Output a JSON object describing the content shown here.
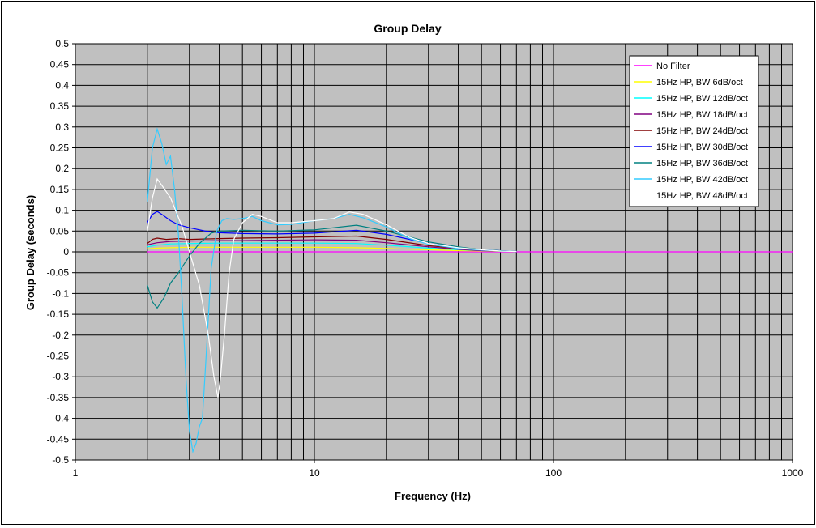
{
  "chart_data": {
    "type": "line",
    "title": "Group Delay",
    "xlabel": "Frequency (Hz)",
    "ylabel": "Group Delay (seconds)",
    "xscale": "log",
    "xlim": [
      1,
      1000
    ],
    "ylim": [
      -0.5,
      0.5
    ],
    "x_ticks": [
      "1",
      "10",
      "100",
      "1000"
    ],
    "y_ticks": [
      "0.5",
      "0.45",
      "0.4",
      "0.35",
      "0.3",
      "0.25",
      "0.2",
      "0.15",
      "0.1",
      "0.05",
      "0",
      "-0.05",
      "-0.1",
      "-0.15",
      "-0.2",
      "-0.25",
      "-0.3",
      "-0.35",
      "-0.4",
      "-0.45",
      "-0.5"
    ],
    "grid": "on",
    "plot_background": "#c0c0c0",
    "legend_position": "top-right",
    "series": [
      {
        "name": "No Filter",
        "color": "#ff00ff",
        "x": [
          2,
          3,
          5,
          10,
          20,
          40,
          100,
          1000
        ],
        "y": [
          0,
          0,
          0,
          0,
          0,
          0,
          0,
          0
        ]
      },
      {
        "name": "15Hz HP, BW 6dB/oct",
        "color": "#ffff00",
        "x": [
          2,
          2.2,
          2.5,
          3,
          4,
          5,
          7,
          10,
          15,
          20,
          30,
          40,
          50,
          70
        ],
        "y": [
          0.007,
          0.009,
          0.01,
          0.011,
          0.011,
          0.011,
          0.011,
          0.011,
          0.01,
          0.008,
          0.005,
          0.003,
          0.002,
          0.001
        ]
      },
      {
        "name": "15Hz HP, BW 12dB/oct",
        "color": "#00ffff",
        "x": [
          2,
          2.2,
          2.5,
          3,
          4,
          5,
          7,
          10,
          15,
          20,
          30,
          40,
          50,
          70
        ],
        "y": [
          0.012,
          0.016,
          0.019,
          0.02,
          0.021,
          0.021,
          0.021,
          0.021,
          0.02,
          0.016,
          0.009,
          0.005,
          0.003,
          0.001
        ]
      },
      {
        "name": "15Hz HP, BW 18dB/oct",
        "color": "#800080",
        "x": [
          2,
          2.2,
          2.5,
          3,
          4,
          5,
          7,
          10,
          15,
          20,
          30,
          40,
          50,
          70
        ],
        "y": [
          0.017,
          0.022,
          0.025,
          0.026,
          0.027,
          0.027,
          0.028,
          0.029,
          0.028,
          0.022,
          0.012,
          0.006,
          0.003,
          0.001
        ]
      },
      {
        "name": "15Hz HP, BW 24dB/oct",
        "color": "#800000",
        "x": [
          2,
          2.1,
          2.2,
          2.4,
          2.7,
          3,
          4,
          5,
          7,
          10,
          15,
          20,
          30,
          40,
          50,
          70
        ],
        "y": [
          0.02,
          0.03,
          0.033,
          0.03,
          0.032,
          0.03,
          0.032,
          0.033,
          0.034,
          0.036,
          0.038,
          0.03,
          0.015,
          0.008,
          0.004,
          0.001
        ]
      },
      {
        "name": "15Hz HP, BW 30dB/oct",
        "color": "#0000ff",
        "x": [
          2,
          2.1,
          2.2,
          2.3,
          2.5,
          2.7,
          3,
          3.5,
          4,
          5,
          7,
          10,
          15,
          20,
          30,
          40,
          50,
          70
        ],
        "y": [
          0.07,
          0.09,
          0.097,
          0.09,
          0.075,
          0.065,
          0.058,
          0.05,
          0.046,
          0.044,
          0.043,
          0.045,
          0.052,
          0.042,
          0.02,
          0.01,
          0.005,
          0.001
        ]
      },
      {
        "name": "15Hz HP, BW 36dB/oct",
        "color": "#008080",
        "x": [
          2,
          2.1,
          2.2,
          2.35,
          2.5,
          2.7,
          3,
          3.3,
          3.7,
          4,
          5,
          7,
          10,
          15,
          20,
          30,
          40,
          50,
          70
        ],
        "y": [
          -0.08,
          -0.12,
          -0.135,
          -0.11,
          -0.075,
          -0.05,
          -0.01,
          0.02,
          0.045,
          0.05,
          0.052,
          0.05,
          0.053,
          0.064,
          0.05,
          0.024,
          0.012,
          0.005,
          0.001
        ]
      },
      {
        "name": "15Hz HP, BW 42dB/oct",
        "color": "#33ccff",
        "x": [
          2,
          2.1,
          2.2,
          2.3,
          2.4,
          2.5,
          2.6,
          2.7,
          2.8,
          2.9,
          3,
          3.1,
          3.2,
          3.3,
          3.4,
          3.5,
          3.7,
          3.9,
          4.1,
          4.3,
          4.6,
          5,
          5.5,
          6,
          7,
          8,
          10,
          12,
          14,
          16,
          20,
          25,
          30,
          40,
          50,
          60,
          70
        ],
        "y": [
          0.12,
          0.25,
          0.295,
          0.26,
          0.21,
          0.23,
          0.15,
          0.04,
          -0.12,
          -0.3,
          -0.43,
          -0.48,
          -0.46,
          -0.42,
          -0.4,
          -0.28,
          -0.04,
          0.05,
          0.075,
          0.08,
          0.078,
          0.08,
          0.085,
          0.075,
          0.065,
          0.066,
          0.075,
          0.08,
          0.09,
          0.082,
          0.06,
          0.032,
          0.018,
          0.008,
          0.004,
          0.002,
          0.001
        ]
      },
      {
        "name": "15Hz HP, BW 48dB/oct",
        "color": "#ffffff",
        "x": [
          2,
          2.1,
          2.2,
          2.3,
          2.5,
          2.8,
          3,
          3.3,
          3.6,
          3.8,
          3.95,
          4.05,
          4.2,
          4.4,
          4.6,
          5,
          5.5,
          6,
          7,
          8,
          10,
          12,
          14,
          16,
          20,
          25,
          30,
          40,
          50,
          60,
          70
        ],
        "y": [
          0.05,
          0.13,
          0.175,
          0.16,
          0.13,
          0.06,
          0.0,
          -0.08,
          -0.2,
          -0.3,
          -0.35,
          -0.3,
          -0.2,
          -0.05,
          0.03,
          0.07,
          0.09,
          0.085,
          0.07,
          0.07,
          0.075,
          0.08,
          0.096,
          0.09,
          0.065,
          0.035,
          0.02,
          0.01,
          0.005,
          0.002,
          0.001
        ]
      }
    ]
  }
}
